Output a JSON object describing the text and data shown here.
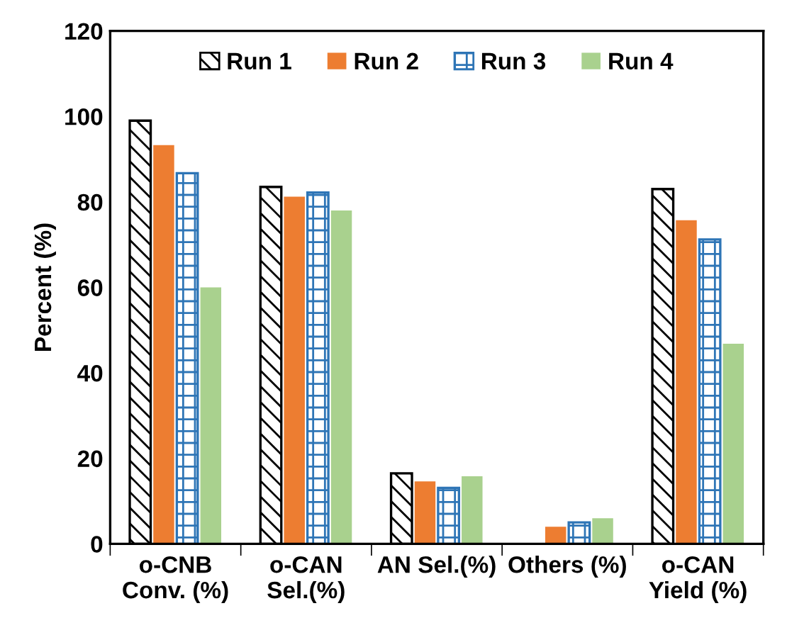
{
  "chart_data": {
    "type": "bar",
    "ylabel": "Percent (%)",
    "categories": [
      "o-CNB\nConv. (%)",
      "o-CAN\nSel.(%)",
      "AN Sel.(%)",
      "Others (%)",
      "o-CAN\nYield (%)"
    ],
    "series": [
      {
        "name": "Run 1",
        "color": "#000000",
        "values": [
          99,
          83.5,
          16.5,
          0,
          83
        ]
      },
      {
        "name": "Run 2",
        "color": "#ed7d31",
        "values": [
          93.3,
          81.2,
          14.6,
          4,
          75.7
        ]
      },
      {
        "name": "Run 3",
        "color": "#2e75b6",
        "values": [
          86.7,
          82.2,
          13.1,
          5,
          71.2
        ]
      },
      {
        "name": "Run 4",
        "color": "#a9d18e",
        "values": [
          60,
          78,
          15.8,
          6,
          46.8
        ]
      }
    ],
    "ylim": [
      0,
      120
    ],
    "yticks": [
      0,
      20,
      40,
      60,
      80,
      100,
      120
    ],
    "grid": false,
    "legend": "top"
  }
}
